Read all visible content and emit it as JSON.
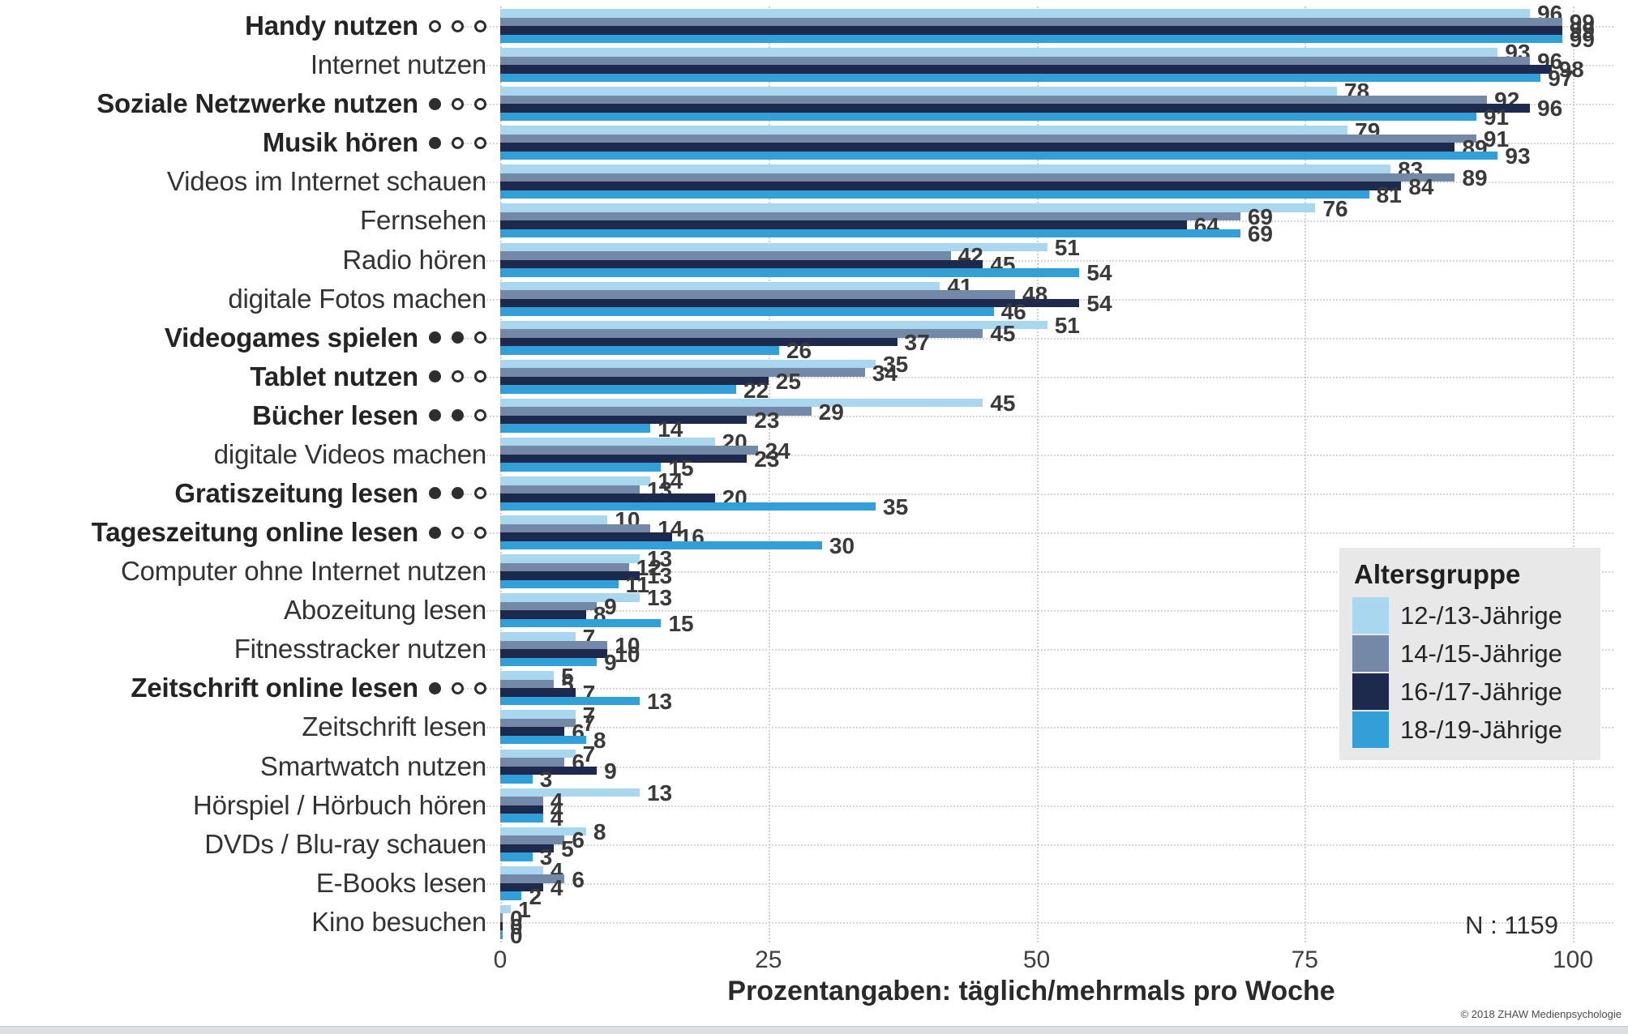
{
  "chart_data": {
    "type": "bar",
    "orientation": "horizontal",
    "xlabel": "Prozentangaben: täglich/mehrmals pro Woche",
    "x_ticks": [
      0,
      25,
      50,
      75,
      100
    ],
    "xlim": [
      0,
      100
    ],
    "grid": "dotted",
    "legend_position": "right-middle",
    "legend_title": "Altersgruppe",
    "series_names": [
      "12-/13-Jährige",
      "14-/15-Jährige",
      "16-/17-Jährige",
      "18-/19-Jährige"
    ],
    "series_colors": [
      "#a8d7ef",
      "#7488a8",
      "#1d2a4d",
      "#339fd9"
    ],
    "n_label": "N : 1159",
    "copyright": "© 2018 ZHAW Medienpsychologie",
    "categories": [
      {
        "label": "Handy nutzen",
        "dots": "○○○",
        "bold": true,
        "values": [
          96,
          99,
          99,
          99
        ]
      },
      {
        "label": "Internet nutzen",
        "dots": "",
        "bold": false,
        "values": [
          93,
          96,
          98,
          97
        ]
      },
      {
        "label": "Soziale Netzwerke nutzen",
        "dots": "●○○",
        "bold": true,
        "values": [
          78,
          92,
          96,
          91
        ]
      },
      {
        "label": "Musik hören",
        "dots": "●○○",
        "bold": true,
        "values": [
          79,
          91,
          89,
          93
        ]
      },
      {
        "label": "Videos im Internet schauen",
        "dots": "",
        "bold": false,
        "values": [
          83,
          89,
          84,
          81
        ]
      },
      {
        "label": "Fernsehen",
        "dots": "",
        "bold": false,
        "values": [
          76,
          69,
          64,
          69
        ]
      },
      {
        "label": "Radio hören",
        "dots": "",
        "bold": false,
        "values": [
          51,
          42,
          45,
          54
        ]
      },
      {
        "label": "digitale Fotos machen",
        "dots": "",
        "bold": false,
        "values": [
          41,
          48,
          54,
          46
        ]
      },
      {
        "label": "Videogames spielen",
        "dots": "●●○",
        "bold": true,
        "values": [
          51,
          45,
          37,
          26
        ]
      },
      {
        "label": "Tablet nutzen",
        "dots": "●○○",
        "bold": true,
        "values": [
          35,
          34,
          25,
          22
        ]
      },
      {
        "label": "Bücher lesen",
        "dots": "●●○",
        "bold": true,
        "values": [
          45,
          29,
          23,
          14
        ]
      },
      {
        "label": "digitale Videos machen",
        "dots": "",
        "bold": false,
        "values": [
          20,
          24,
          23,
          15
        ]
      },
      {
        "label": "Gratiszeitung lesen",
        "dots": "●●○",
        "bold": true,
        "values": [
          14,
          13,
          20,
          35
        ]
      },
      {
        "label": "Tageszeitung online lesen",
        "dots": "●○○",
        "bold": true,
        "values": [
          10,
          14,
          16,
          30
        ]
      },
      {
        "label": "Computer ohne Internet nutzen",
        "dots": "",
        "bold": false,
        "values": [
          13,
          12,
          13,
          11
        ]
      },
      {
        "label": "Abozeitung lesen",
        "dots": "",
        "bold": false,
        "values": [
          13,
          9,
          8,
          15
        ]
      },
      {
        "label": "Fitnesstracker nutzen",
        "dots": "",
        "bold": false,
        "values": [
          7,
          10,
          10,
          9
        ]
      },
      {
        "label": "Zeitschrift online lesen",
        "dots": "●○○",
        "bold": true,
        "values": [
          5,
          5,
          7,
          13
        ]
      },
      {
        "label": "Zeitschrift lesen",
        "dots": "",
        "bold": false,
        "values": [
          7,
          7,
          6,
          8
        ]
      },
      {
        "label": "Smartwatch nutzen",
        "dots": "",
        "bold": false,
        "values": [
          7,
          6,
          9,
          3
        ]
      },
      {
        "label": "Hörspiel / Hörbuch hören",
        "dots": "",
        "bold": false,
        "values": [
          13,
          4,
          4,
          4
        ]
      },
      {
        "label": "DVDs / Blu-ray schauen",
        "dots": "",
        "bold": false,
        "values": [
          8,
          6,
          5,
          3
        ]
      },
      {
        "label": "E-Books lesen",
        "dots": "",
        "bold": false,
        "values": [
          4,
          6,
          4,
          2
        ]
      },
      {
        "label": "Kino besuchen",
        "dots": "",
        "bold": false,
        "values": [
          1,
          0,
          0,
          0
        ]
      }
    ]
  }
}
